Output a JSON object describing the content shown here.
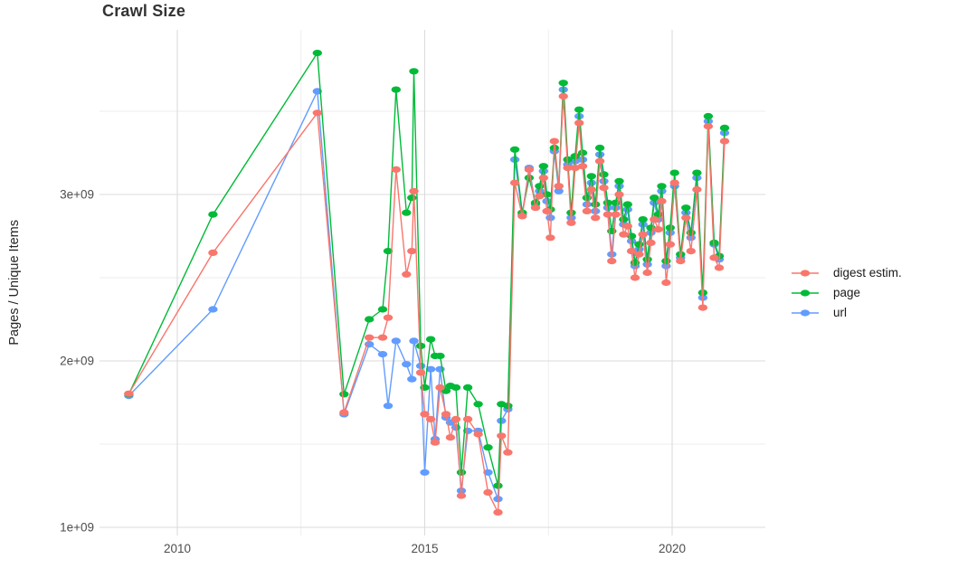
{
  "title": "Crawl Size",
  "y_axis": {
    "label": "Pages / Unique Items",
    "tick_labels": [
      "3e+09",
      "2e+09",
      "1e+09"
    ],
    "tick_values": [
      3000000000.0,
      2000000000.0,
      1000000000.0
    ],
    "minor_values": [
      3500000000.0,
      2500000000.0,
      1500000000.0
    ]
  },
  "x_axis": {
    "tick_labels": [
      "2010",
      "2015",
      "2020"
    ],
    "tick_values": [
      2010,
      2015,
      2020
    ],
    "minor_values": [
      2012.5,
      2017.5
    ]
  },
  "legend": {
    "position": "right",
    "items": [
      {
        "label": "digest estim.",
        "color": "#F8766D"
      },
      {
        "label": "page",
        "color": "#00BA38"
      },
      {
        "label": "url",
        "color": "#619CFF"
      }
    ]
  },
  "colors": {
    "grid_major": "#DBDBDB",
    "grid_minor": "#ECECEC",
    "tick_text": "#4D4D4D",
    "title_text": "#333333",
    "axis_title_text": "#262626",
    "background": "#FFFFFF"
  },
  "chart_data": {
    "type": "line",
    "title": "Crawl Size",
    "xlabel": "",
    "ylabel": "Pages / Unique Items",
    "x_unit": "decimal year of crawl",
    "xlim": [
      2008.42,
      2021.9
    ],
    "ylim": [
      950000000.0,
      3990000000.0
    ],
    "grid": true,
    "legend_position": "right",
    "x": [
      2009.02,
      2010.72,
      2012.83,
      2013.37,
      2013.88,
      2014.15,
      2014.26,
      2014.42,
      2014.63,
      2014.74,
      2014.78,
      2014.92,
      2015.0,
      2015.12,
      2015.21,
      2015.31,
      2015.43,
      2015.52,
      2015.63,
      2015.74,
      2015.87,
      2016.08,
      2016.28,
      2016.48,
      2016.55,
      2016.68,
      2016.82,
      2016.97,
      2017.11,
      2017.24,
      2017.32,
      2017.4,
      2017.47,
      2017.54,
      2017.62,
      2017.71,
      2017.8,
      2017.89,
      2017.96,
      2018.04,
      2018.12,
      2018.19,
      2018.28,
      2018.37,
      2018.45,
      2018.54,
      2018.62,
      2018.7,
      2018.78,
      2018.86,
      2018.93,
      2019.02,
      2019.1,
      2019.18,
      2019.25,
      2019.33,
      2019.41,
      2019.5,
      2019.57,
      2019.64,
      2019.72,
      2019.79,
      2019.88,
      2019.96,
      2020.05,
      2020.17,
      2020.28,
      2020.38,
      2020.5,
      2020.62,
      2020.73,
      2020.85,
      2020.95,
      2021.06
    ],
    "series": [
      {
        "name": "digest estim.",
        "color": "#F8766D",
        "values": [
          1803000000.0,
          2650000000.0,
          3490000000.0,
          1690000000.0,
          2140000000.0,
          2140000000.0,
          2260000000.0,
          3150000000.0,
          2520000000.0,
          2660000000.0,
          3020000000.0,
          1930000000.0,
          1680000000.0,
          1650000000.0,
          1510000000.0,
          1840000000.0,
          1680000000.0,
          1540000000.0,
          1650000000.0,
          1190000000.0,
          1650000000.0,
          1560000000.0,
          1210000000.0,
          1090000000.0,
          1550000000.0,
          1450000000.0,
          3070000000.0,
          2870000000.0,
          3150000000.0,
          2920000000.0,
          2990000000.0,
          3100000000.0,
          2900000000.0,
          2740000000.0,
          3320000000.0,
          3050000000.0,
          3590000000.0,
          3160000000.0,
          2830000000.0,
          3160000000.0,
          3430000000.0,
          3170000000.0,
          2900000000.0,
          3030000000.0,
          2860000000.0,
          3200000000.0,
          3040000000.0,
          2880000000.0,
          2600000000.0,
          2880000000.0,
          3000000000.0,
          2760000000.0,
          2810000000.0,
          2660000000.0,
          2500000000.0,
          2640000000.0,
          2760000000.0,
          2530000000.0,
          2710000000.0,
          2850000000.0,
          2790000000.0,
          2960000000.0,
          2470000000.0,
          2700000000.0,
          3070000000.0,
          2600000000.0,
          2860000000.0,
          2660000000.0,
          3030000000.0,
          2320000000.0,
          3410000000.0,
          2620000000.0,
          2560000000.0,
          3320000000.0
        ]
      },
      {
        "name": "page",
        "color": "#00BA38",
        "values": [
          1800000000.0,
          2880000000.0,
          3850000000.0,
          1800000000.0,
          2250000000.0,
          2310000000.0,
          2660000000.0,
          3630000000.0,
          2890000000.0,
          2980000000.0,
          3740000000.0,
          2090000000.0,
          1840000000.0,
          2130000000.0,
          2030000000.0,
          2030000000.0,
          1820000000.0,
          1850000000.0,
          1840000000.0,
          1330000000.0,
          1840000000.0,
          1740000000.0,
          1480000000.0,
          1250000000.0,
          1740000000.0,
          1730000000.0,
          3270000000.0,
          2890000000.0,
          3100000000.0,
          2950000000.0,
          3050000000.0,
          3170000000.0,
          3000000000.0,
          2910000000.0,
          3280000000.0,
          3050000000.0,
          3670000000.0,
          3210000000.0,
          2890000000.0,
          3230000000.0,
          3510000000.0,
          3250000000.0,
          2980000000.0,
          3110000000.0,
          2940000000.0,
          3280000000.0,
          3120000000.0,
          2950000000.0,
          2780000000.0,
          2950000000.0,
          3080000000.0,
          2850000000.0,
          2940000000.0,
          2750000000.0,
          2590000000.0,
          2700000000.0,
          2850000000.0,
          2610000000.0,
          2800000000.0,
          2980000000.0,
          2880000000.0,
          3050000000.0,
          2600000000.0,
          2800000000.0,
          3130000000.0,
          2640000000.0,
          2920000000.0,
          2770000000.0,
          3130000000.0,
          2410000000.0,
          3470000000.0,
          2710000000.0,
          2630000000.0,
          3400000000.0
        ]
      },
      {
        "name": "url",
        "color": "#619CFF",
        "values": [
          1790000000.0,
          2310000000.0,
          3620000000.0,
          1680000000.0,
          2100000000.0,
          2040000000.0,
          1730000000.0,
          2120000000.0,
          1980000000.0,
          1890000000.0,
          2120000000.0,
          1970000000.0,
          1330000000.0,
          1950000000.0,
          1530000000.0,
          1950000000.0,
          1660000000.0,
          1630000000.0,
          1600000000.0,
          1220000000.0,
          1580000000.0,
          1580000000.0,
          1330000000.0,
          1170000000.0,
          1640000000.0,
          1710000000.0,
          3210000000.0,
          2880000000.0,
          3160000000.0,
          2940000000.0,
          3020000000.0,
          3140000000.0,
          2960000000.0,
          2860000000.0,
          3260000000.0,
          3020000000.0,
          3630000000.0,
          3180000000.0,
          2860000000.0,
          3200000000.0,
          3470000000.0,
          3210000000.0,
          2940000000.0,
          3070000000.0,
          2900000000.0,
          3240000000.0,
          3080000000.0,
          2920000000.0,
          2640000000.0,
          2920000000.0,
          3050000000.0,
          2820000000.0,
          2910000000.0,
          2720000000.0,
          2570000000.0,
          2670000000.0,
          2820000000.0,
          2580000000.0,
          2770000000.0,
          2950000000.0,
          2850000000.0,
          3020000000.0,
          2570000000.0,
          2770000000.0,
          3050000000.0,
          2620000000.0,
          2890000000.0,
          2740000000.0,
          3100000000.0,
          2380000000.0,
          3440000000.0,
          2700000000.0,
          2610000000.0,
          3370000000.0
        ]
      }
    ]
  }
}
